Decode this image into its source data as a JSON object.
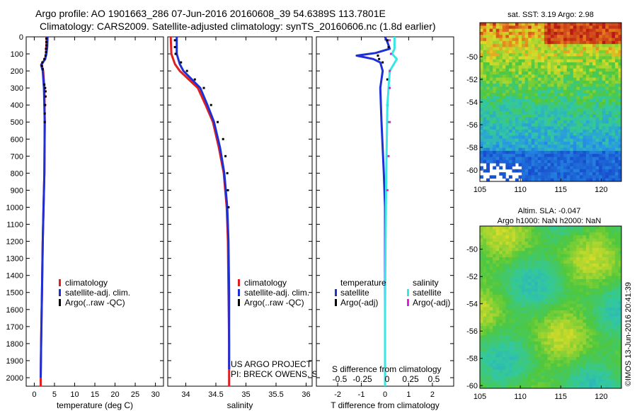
{
  "header": {
    "line1": "Argo profile: AO 1901663_286 07-Jun-2016 20160608_39 54.6389S 113.7801E",
    "line2": "Climatology: CARS2009. Satellite-adjusted climatology: synTS_20160606.nc (1.8d earlier)"
  },
  "colors": {
    "climatology": "#e02020",
    "satellite": "#1f2fd6",
    "argo": "#000000",
    "satellite_salinity": "#38e6e6",
    "argo_salinity": "#e020e0"
  },
  "chart_data": [
    {
      "type": "line",
      "name": "temperature-panel",
      "xlabel": "temperature (deg C)",
      "xlim": [
        -2,
        32
      ],
      "ylim": [
        2050,
        0
      ],
      "xticks": [
        0,
        5,
        10,
        15,
        20,
        25,
        30
      ],
      "yticks": [
        0,
        100,
        200,
        300,
        400,
        500,
        600,
        700,
        800,
        900,
        1000,
        1100,
        1200,
        1300,
        1400,
        1500,
        1600,
        1700,
        1800,
        1900,
        2000
      ],
      "legend": [
        "climatology",
        "satellite-adj. clim.",
        "Argo(..raw -QC)"
      ],
      "series": [
        {
          "name": "climatology",
          "style": "line",
          "color": "#e02020",
          "points": [
            [
              3.1,
              0
            ],
            [
              3.0,
              60
            ],
            [
              2.9,
              100
            ],
            [
              2.7,
              130
            ],
            [
              1.8,
              160
            ],
            [
              2.2,
              200
            ],
            [
              2.5,
              300
            ],
            [
              2.6,
              500
            ],
            [
              2.5,
              800
            ],
            [
              2.3,
              1000
            ],
            [
              2.1,
              1200
            ],
            [
              1.9,
              1500
            ],
            [
              1.7,
              1800
            ],
            [
              1.6,
              2000
            ],
            [
              1.6,
              2050
            ]
          ]
        },
        {
          "name": "satellite-adj. clim.",
          "style": "line",
          "color": "#1f2fd6",
          "points": [
            [
              3.3,
              0
            ],
            [
              3.2,
              60
            ],
            [
              3.0,
              100
            ],
            [
              2.7,
              130
            ],
            [
              1.7,
              165
            ],
            [
              2.1,
              200
            ],
            [
              2.4,
              300
            ],
            [
              2.6,
              500
            ],
            [
              2.5,
              800
            ],
            [
              2.3,
              1000
            ],
            [
              2.1,
              1200
            ],
            [
              1.9,
              1500
            ],
            [
              1.7,
              1800
            ],
            [
              1.6,
              2000
            ]
          ]
        },
        {
          "name": "Argo(..raw -QC)",
          "style": "dots",
          "color": "#000000",
          "points": [
            [
              3.0,
              10
            ],
            [
              3.0,
              30
            ],
            [
              3.0,
              50
            ],
            [
              2.9,
              70
            ],
            [
              2.9,
              90
            ],
            [
              2.8,
              110
            ],
            [
              2.5,
              130
            ],
            [
              2.0,
              150
            ],
            [
              1.9,
              170
            ],
            [
              2.1,
              190
            ],
            [
              2.5,
              280
            ],
            [
              2.7,
              300
            ],
            [
              2.8,
              320
            ],
            [
              2.8,
              350
            ],
            [
              2.7,
              400
            ],
            [
              2.6,
              450
            ],
            [
              2.6,
              500
            ]
          ]
        }
      ]
    },
    {
      "type": "line",
      "name": "salinity-panel",
      "xlabel": "salinity",
      "xlim": [
        33.7,
        36.1
      ],
      "ylim": [
        2050,
        0
      ],
      "xticks": [
        34,
        34.5,
        35,
        35.5,
        36
      ],
      "legend": [
        "climatology",
        "satellite-adj. clim.",
        "Argo(..raw -QC)"
      ],
      "annotation": [
        "US ARGO PROJECT",
        "PI: BRECK OWENS, STEVE JAYNE, P.E. ROBBINS"
      ],
      "series": [
        {
          "name": "climatology",
          "style": "line",
          "color": "#e02020",
          "points": [
            [
              33.75,
              0
            ],
            [
              33.76,
              100
            ],
            [
              33.82,
              160
            ],
            [
              33.9,
              200
            ],
            [
              34.05,
              250
            ],
            [
              34.2,
              300
            ],
            [
              34.33,
              400
            ],
            [
              34.45,
              500
            ],
            [
              34.55,
              650
            ],
            [
              34.63,
              800
            ],
            [
              34.68,
              1000
            ],
            [
              34.7,
              1200
            ],
            [
              34.71,
              1500
            ],
            [
              34.72,
              1800
            ],
            [
              34.72,
              2000
            ],
            [
              34.72,
              2050
            ]
          ]
        },
        {
          "name": "satellite-adj. clim.",
          "style": "line",
          "color": "#1f2fd6",
          "points": [
            [
              33.85,
              0
            ],
            [
              33.85,
              100
            ],
            [
              33.9,
              160
            ],
            [
              33.96,
              200
            ],
            [
              34.1,
              250
            ],
            [
              34.24,
              300
            ],
            [
              34.36,
              400
            ],
            [
              34.47,
              500
            ],
            [
              34.57,
              650
            ],
            [
              34.64,
              800
            ],
            [
              34.69,
              1000
            ],
            [
              34.71,
              1200
            ],
            [
              34.72,
              1500
            ],
            [
              34.72,
              1800
            ],
            [
              34.72,
              1950
            ]
          ]
        },
        {
          "name": "Argo(..raw -QC)",
          "style": "dots",
          "color": "#000000",
          "points": [
            [
              33.82,
              20
            ],
            [
              33.82,
              60
            ],
            [
              33.83,
              100
            ],
            [
              33.92,
              150
            ],
            [
              34.02,
              200
            ],
            [
              34.15,
              250
            ],
            [
              34.3,
              300
            ],
            [
              34.42,
              400
            ],
            [
              34.53,
              500
            ],
            [
              34.62,
              600
            ],
            [
              34.66,
              700
            ],
            [
              34.69,
              800
            ],
            [
              34.7,
              900
            ],
            [
              34.71,
              1000
            ]
          ]
        }
      ]
    },
    {
      "type": "line",
      "name": "difference-panel",
      "xlabel": "T difference from climatology",
      "xlim": [
        -2.9,
        2.9
      ],
      "ylim": [
        2050,
        0
      ],
      "xticks": [
        -2,
        -1,
        0,
        1,
        2
      ],
      "secondary_axis_label": "S difference from climatology",
      "secondary_xticks": [
        "-0.5",
        "-0.25",
        "0",
        "0.25",
        "0.5"
      ],
      "legend_groups": {
        "temperature": [
          "satellite",
          "Argo(-adj)"
        ],
        "salinity": [
          "satellite",
          "Argo(-adj)"
        ]
      },
      "legend_group_titles": [
        "temperature",
        "salinity"
      ],
      "series": [
        {
          "name": "T satellite",
          "style": "line",
          "color": "#1f2fd6",
          "points": [
            [
              0,
              0
            ],
            [
              0.1,
              30
            ],
            [
              0.2,
              70
            ],
            [
              -0.4,
              95
            ],
            [
              -1.2,
              110
            ],
            [
              -0.5,
              130
            ],
            [
              -0.2,
              150
            ],
            [
              -0.1,
              200
            ],
            [
              -0.15,
              250
            ],
            [
              -0.2,
              300
            ],
            [
              -0.15,
              500
            ],
            [
              -0.05,
              800
            ],
            [
              0,
              1000
            ],
            [
              0,
              1500
            ],
            [
              0,
              2050
            ]
          ]
        },
        {
          "name": "T Argo(-adj)",
          "style": "dots",
          "color": "#000000",
          "points": [
            [
              0.1,
              20
            ],
            [
              0.15,
              60
            ],
            [
              -0.3,
              110
            ],
            [
              -0.25,
              130
            ],
            [
              -0.1,
              150
            ],
            [
              0.1,
              250
            ],
            [
              0.15,
              300
            ],
            [
              0.1,
              400
            ],
            [
              0.1,
              500
            ]
          ]
        },
        {
          "name": "S satellite",
          "style": "line",
          "color": "#38e6e6",
          "points": [
            [
              0.4,
              0
            ],
            [
              0.4,
              70
            ],
            [
              0.3,
              100
            ],
            [
              0.5,
              130
            ],
            [
              0.2,
              200
            ],
            [
              0.1,
              400
            ],
            [
              0.05,
              800
            ],
            [
              0.02,
              1200
            ],
            [
              0,
              1600
            ],
            [
              0,
              2050
            ]
          ]
        },
        {
          "name": "S Argo(-adj)",
          "style": "dots",
          "color": "#e020e0",
          "points": [
            [
              0.2,
              20
            ],
            [
              0.25,
              100
            ],
            [
              0.2,
              200
            ],
            [
              0.2,
              300
            ],
            [
              0.2,
              500
            ],
            [
              0.15,
              700
            ],
            [
              0.1,
              900
            ]
          ]
        }
      ]
    },
    {
      "type": "heatmap",
      "name": "sst-map",
      "title": "sat. SST: 3.19 Argo: 2.98",
      "xlim": [
        105,
        122.5
      ],
      "ylim": [
        -61,
        -47
      ],
      "xticks": [
        105,
        110,
        115,
        120
      ],
      "yticks": [
        -50,
        -52,
        -54,
        -56,
        -58,
        -60
      ]
    },
    {
      "type": "heatmap",
      "name": "sla-map",
      "title": [
        "Altim. SLA: -0.047",
        "Argo h1000: NaN h2000: NaN"
      ],
      "xlim": [
        105,
        122.5
      ],
      "ylim": [
        -60.2,
        -48.3
      ],
      "xticks": [
        105,
        110,
        115,
        120
      ],
      "yticks": [
        -50,
        -52,
        -54,
        -56,
        -58,
        -60
      ]
    }
  ],
  "stamp": "©IMOS 13-Jun-2016 20:41:39"
}
